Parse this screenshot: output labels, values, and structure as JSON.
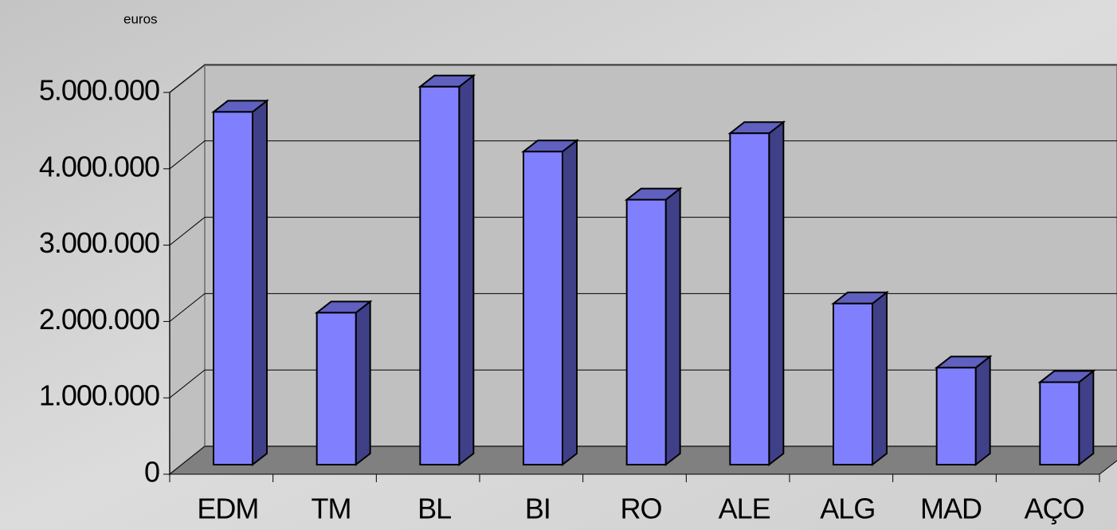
{
  "chart_data": {
    "type": "bar",
    "y_label": "euros",
    "categories": [
      "EDM",
      "TM",
      "BL",
      "BI",
      "RO",
      "ALE",
      "ALG",
      "MAD",
      "AÇO"
    ],
    "values": [
      4620000,
      1990000,
      4950000,
      4100000,
      3470000,
      4340000,
      2110000,
      1270000,
      1080000
    ],
    "color": "#8080ff",
    "ylim": [
      0,
      5000000
    ],
    "yticks": [
      0,
      {
        "value": 1000000,
        "label": "1.000.000"
      },
      {
        "value": 2000000,
        "label": "2.000.000"
      },
      {
        "value": 3000000,
        "label": "3.000.000"
      },
      {
        "value": 4000000,
        "label": "4.000.000"
      },
      {
        "value": 5000000,
        "label": "5.000.000"
      }
    ],
    "grid": true
  }
}
